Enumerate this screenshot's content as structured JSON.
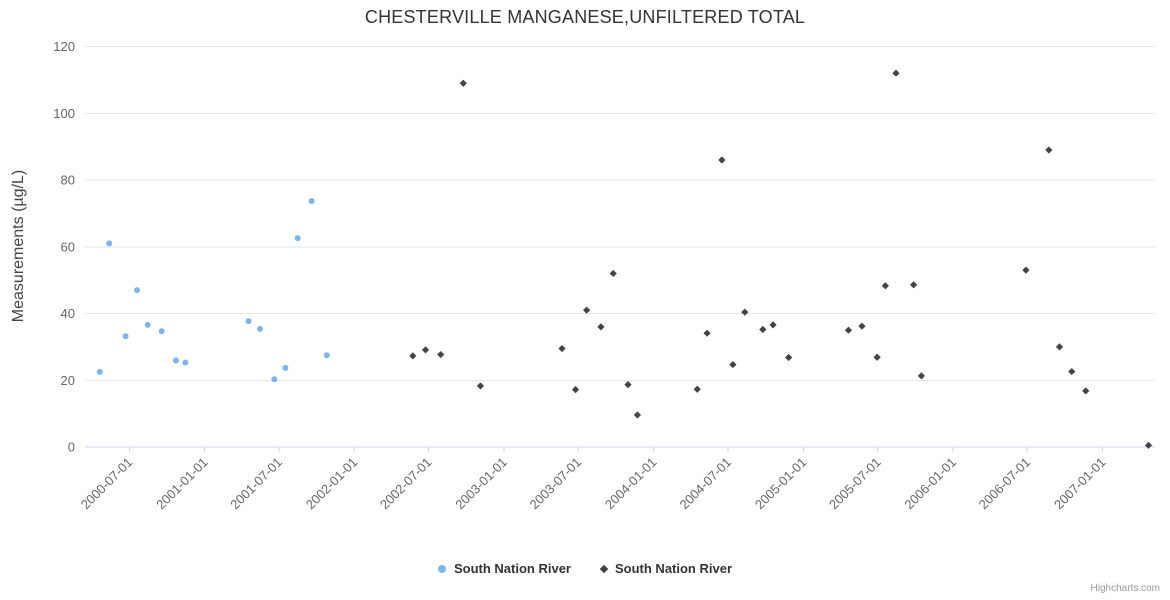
{
  "header": {
    "title": "CHESTERVILLE MANGANESE,UNFILTERED TOTAL"
  },
  "credits": "Highcharts.com",
  "chart_data": {
    "type": "scatter",
    "title": "CHESTERVILLE MANGANESE,UNFILTERED TOTAL",
    "xlabel": "",
    "ylabel": "Measurements (µg/L)",
    "ylim": [
      0,
      120
    ],
    "y_ticks": [
      0,
      20,
      40,
      60,
      80,
      100,
      120
    ],
    "xlim": [
      "2000-03-15",
      "2007-05-09"
    ],
    "x_ticks": [
      "2000-07-01",
      "2001-01-01",
      "2001-07-01",
      "2002-01-01",
      "2002-07-01",
      "2003-01-01",
      "2003-07-01",
      "2004-01-01",
      "2004-07-01",
      "2005-01-01",
      "2005-07-01",
      "2006-01-01",
      "2006-07-01",
      "2007-01-01"
    ],
    "x_tick_rotation": -45,
    "grid": "horizontal-only",
    "legend_position": "bottom-center",
    "grid_color": "#e6e6e6",
    "axis_line_color": "#ccd6eb",
    "tick_label_color": "#666666",
    "series": [
      {
        "name": "South Nation River",
        "marker": "circle",
        "color": "#7cb5ec",
        "points": [
          [
            "2000-04-20",
            22.5
          ],
          [
            "2000-05-13",
            61.0
          ],
          [
            "2000-06-22",
            33.2
          ],
          [
            "2000-07-20",
            47.0
          ],
          [
            "2000-08-15",
            36.6
          ],
          [
            "2000-09-18",
            34.7
          ],
          [
            "2000-10-23",
            25.9
          ],
          [
            "2000-11-15",
            25.3
          ],
          [
            "2001-04-18",
            37.7
          ],
          [
            "2001-05-16",
            35.4
          ],
          [
            "2001-06-20",
            20.3
          ],
          [
            "2001-07-17",
            23.7
          ],
          [
            "2001-08-16",
            62.6
          ],
          [
            "2001-09-19",
            73.7
          ],
          [
            "2001-10-26",
            27.5
          ]
        ]
      },
      {
        "name": "South Nation River",
        "marker": "diamond",
        "color": "#434348",
        "points": [
          [
            "2002-05-24",
            27.3
          ],
          [
            "2002-06-24",
            29.1
          ],
          [
            "2002-07-31",
            27.7
          ],
          [
            "2002-09-24",
            109.0
          ],
          [
            "2002-11-05",
            18.3
          ],
          [
            "2003-05-23",
            29.5
          ],
          [
            "2003-06-25",
            17.2
          ],
          [
            "2003-07-22",
            41.0
          ],
          [
            "2003-08-26",
            36.0
          ],
          [
            "2003-09-25",
            52.0
          ],
          [
            "2003-10-31",
            18.7
          ],
          [
            "2003-11-23",
            9.6
          ],
          [
            "2004-04-17",
            17.3
          ],
          [
            "2004-05-11",
            34.1
          ],
          [
            "2004-06-16",
            86.0
          ],
          [
            "2004-07-13",
            24.7
          ],
          [
            "2004-08-11",
            40.4
          ],
          [
            "2004-09-24",
            35.2
          ],
          [
            "2004-10-19",
            36.6
          ],
          [
            "2004-11-26",
            26.8
          ],
          [
            "2005-04-21",
            35.0
          ],
          [
            "2005-05-24",
            36.2
          ],
          [
            "2005-06-30",
            26.9
          ],
          [
            "2005-07-20",
            48.3
          ],
          [
            "2005-08-15",
            112.0
          ],
          [
            "2005-09-27",
            48.6
          ],
          [
            "2005-10-16",
            21.3
          ],
          [
            "2006-06-28",
            53.0
          ],
          [
            "2006-08-23",
            89.0
          ],
          [
            "2006-09-18",
            30.0
          ],
          [
            "2006-10-18",
            22.6
          ],
          [
            "2006-11-21",
            16.8
          ],
          [
            "2007-04-23",
            0.5
          ]
        ]
      }
    ]
  }
}
